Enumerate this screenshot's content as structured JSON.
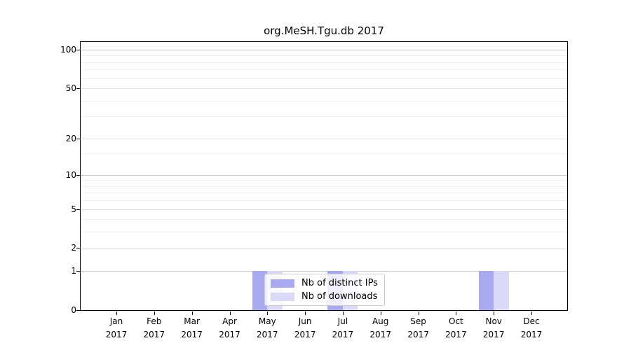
{
  "chart_data": {
    "type": "bar",
    "title": "org.MeSH.Tgu.db 2017",
    "categories": [
      "Jan",
      "Feb",
      "Mar",
      "Apr",
      "May",
      "Jun",
      "Jul",
      "Aug",
      "Sep",
      "Oct",
      "Nov",
      "Dec"
    ],
    "year": "2017",
    "series": [
      {
        "name": "Nb of distinct IPs",
        "color": "#a9a9f0",
        "values": [
          0,
          0,
          0,
          0,
          1,
          0,
          1,
          0,
          0,
          0,
          1,
          0
        ]
      },
      {
        "name": "Nb of downloads",
        "color": "#dadaf6",
        "values": [
          0,
          0,
          0,
          0,
          1,
          0,
          1,
          0,
          0,
          0,
          1,
          0
        ]
      }
    ],
    "y_axis": {
      "scale": "log10(value+1)",
      "tick_values": [
        0,
        1,
        2,
        5,
        10,
        20,
        50,
        100
      ],
      "major_gridlines": [
        1,
        10,
        100
      ],
      "mid_gridlines": [
        2,
        5,
        20,
        50
      ],
      "minor_gridlines": [
        3,
        4,
        6,
        7,
        8,
        9,
        15,
        30,
        40,
        60,
        70,
        80,
        90
      ],
      "ylim": [
        0,
        114.6
      ]
    },
    "grid": "horizontal",
    "legend_position": "inside bottom, left of center",
    "colors": {
      "grid_major": "#c6c6c6",
      "grid_mid": "#e3e3e3",
      "grid_minor": "#efefef",
      "axis": "#000000"
    }
  }
}
